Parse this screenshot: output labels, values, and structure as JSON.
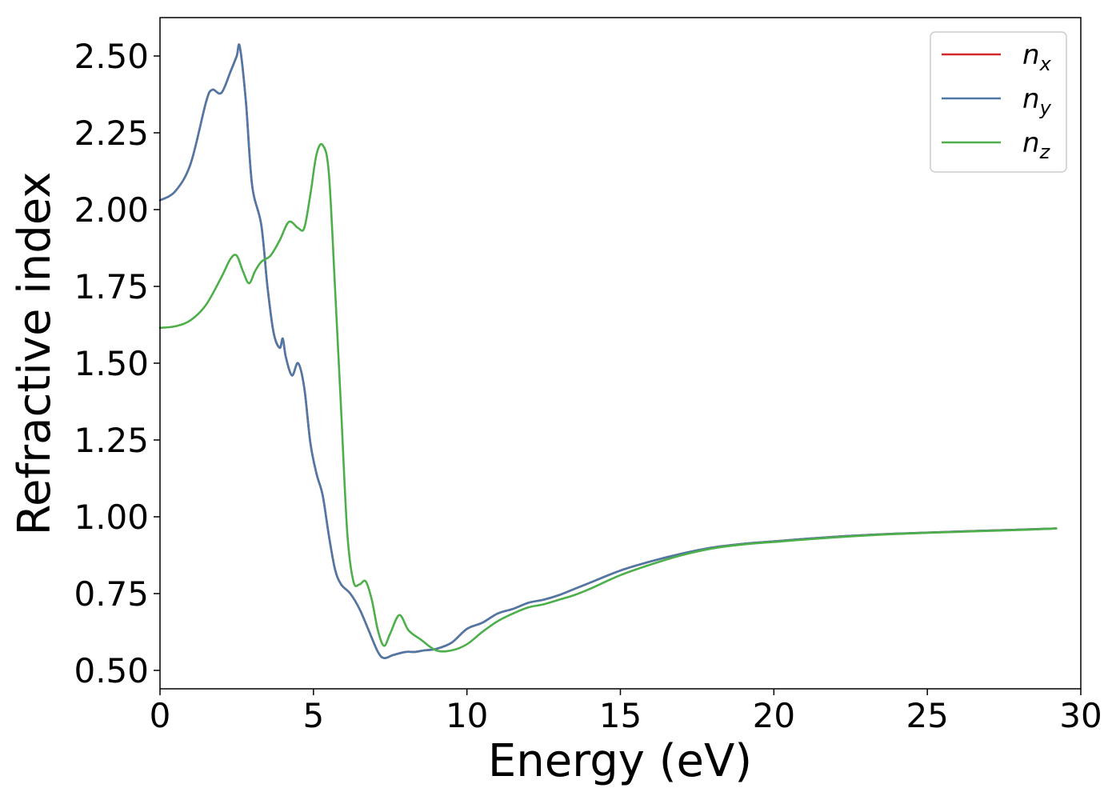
{
  "chart_data": {
    "type": "line",
    "title": "",
    "xlabel": "Energy (eV)",
    "ylabel": "Refractive index",
    "xlim": [
      0,
      30
    ],
    "ylim": [
      0.44,
      2.625
    ],
    "x_ticks": [
      0,
      5,
      10,
      15,
      20,
      25,
      30
    ],
    "x_tick_labels": [
      "0",
      "5",
      "10",
      "15",
      "20",
      "25",
      "30"
    ],
    "y_ticks": [
      0.5,
      0.75,
      1.0,
      1.25,
      1.5,
      1.75,
      2.0,
      2.25,
      2.5
    ],
    "y_tick_labels": [
      "0.50",
      "0.75",
      "1.00",
      "1.25",
      "1.50",
      "1.75",
      "2.00",
      "2.25",
      "2.50"
    ],
    "grid": false,
    "legend_position": "top-right",
    "series": [
      {
        "name": "n",
        "subscript": "x",
        "color": "#d62728",
        "x": [
          0,
          0.5,
          1.0,
          1.5,
          1.7,
          2.0,
          2.3,
          2.5,
          2.6,
          2.8,
          3.0,
          3.3,
          3.5,
          3.7,
          3.9,
          4.0,
          4.1,
          4.3,
          4.5,
          4.7,
          4.9,
          5.1,
          5.3,
          5.5,
          5.7,
          5.9,
          6.2,
          6.5,
          6.8,
          7.1,
          7.3,
          7.6,
          8.0,
          8.3,
          8.6,
          9.0,
          9.5,
          10.0,
          10.5,
          11.0,
          11.5,
          12.0,
          12.5,
          13.0,
          13.5,
          14.0,
          15.0,
          16.0,
          17.0,
          18.0,
          19.0,
          20.0,
          22.0,
          24.0,
          26.0,
          28.0,
          29.2
        ],
        "y": [
          2.03,
          2.06,
          2.15,
          2.35,
          2.39,
          2.38,
          2.45,
          2.5,
          2.53,
          2.35,
          2.08,
          1.95,
          1.75,
          1.6,
          1.55,
          1.58,
          1.52,
          1.46,
          1.5,
          1.42,
          1.24,
          1.14,
          1.07,
          0.94,
          0.83,
          0.78,
          0.75,
          0.7,
          0.63,
          0.56,
          0.54,
          0.55,
          0.56,
          0.56,
          0.565,
          0.57,
          0.59,
          0.635,
          0.655,
          0.685,
          0.7,
          0.72,
          0.73,
          0.745,
          0.765,
          0.785,
          0.825,
          0.855,
          0.88,
          0.9,
          0.912,
          0.92,
          0.935,
          0.945,
          0.952,
          0.958,
          0.962
        ]
      },
      {
        "name": "n",
        "subscript": "y",
        "color": "#4e79a7",
        "x": [
          0,
          0.5,
          1.0,
          1.5,
          1.7,
          2.0,
          2.3,
          2.5,
          2.6,
          2.8,
          3.0,
          3.3,
          3.5,
          3.7,
          3.9,
          4.0,
          4.1,
          4.3,
          4.5,
          4.7,
          4.9,
          5.1,
          5.3,
          5.5,
          5.7,
          5.9,
          6.2,
          6.5,
          6.8,
          7.1,
          7.3,
          7.6,
          8.0,
          8.3,
          8.6,
          9.0,
          9.5,
          10.0,
          10.5,
          11.0,
          11.5,
          12.0,
          12.5,
          13.0,
          13.5,
          14.0,
          15.0,
          16.0,
          17.0,
          18.0,
          19.0,
          20.0,
          22.0,
          24.0,
          26.0,
          28.0,
          29.2
        ],
        "y": [
          2.03,
          2.06,
          2.15,
          2.35,
          2.39,
          2.38,
          2.45,
          2.5,
          2.53,
          2.35,
          2.08,
          1.95,
          1.75,
          1.6,
          1.55,
          1.58,
          1.52,
          1.46,
          1.5,
          1.42,
          1.24,
          1.14,
          1.07,
          0.94,
          0.83,
          0.78,
          0.75,
          0.7,
          0.63,
          0.56,
          0.54,
          0.55,
          0.56,
          0.56,
          0.565,
          0.57,
          0.59,
          0.635,
          0.655,
          0.685,
          0.7,
          0.72,
          0.73,
          0.745,
          0.765,
          0.785,
          0.825,
          0.855,
          0.88,
          0.9,
          0.912,
          0.92,
          0.935,
          0.945,
          0.952,
          0.958,
          0.962
        ]
      },
      {
        "name": "n",
        "subscript": "z",
        "color": "#4daf4a",
        "x": [
          0,
          0.5,
          1.0,
          1.5,
          2.0,
          2.3,
          2.5,
          2.7,
          2.9,
          3.1,
          3.3,
          3.6,
          3.9,
          4.2,
          4.5,
          4.7,
          4.9,
          5.1,
          5.3,
          5.5,
          5.7,
          5.9,
          6.1,
          6.3,
          6.5,
          6.7,
          6.9,
          7.1,
          7.3,
          7.5,
          7.8,
          8.1,
          8.5,
          9.0,
          9.5,
          10.0,
          10.5,
          11.0,
          11.5,
          12.0,
          12.5,
          13.0,
          13.5,
          14.0,
          15.0,
          16.0,
          17.0,
          18.0,
          19.0,
          20.0,
          22.0,
          24.0,
          26.0,
          28.0,
          29.2
        ],
        "y": [
          1.615,
          1.62,
          1.64,
          1.69,
          1.78,
          1.84,
          1.85,
          1.8,
          1.76,
          1.8,
          1.83,
          1.85,
          1.9,
          1.96,
          1.94,
          1.94,
          2.05,
          2.18,
          2.21,
          2.12,
          1.75,
          1.35,
          0.95,
          0.79,
          0.78,
          0.79,
          0.73,
          0.63,
          0.58,
          0.62,
          0.68,
          0.63,
          0.6,
          0.565,
          0.565,
          0.585,
          0.625,
          0.66,
          0.685,
          0.705,
          0.715,
          0.73,
          0.745,
          0.765,
          0.81,
          0.845,
          0.875,
          0.897,
          0.91,
          0.918,
          0.933,
          0.944,
          0.951,
          0.957,
          0.962
        ]
      }
    ]
  }
}
